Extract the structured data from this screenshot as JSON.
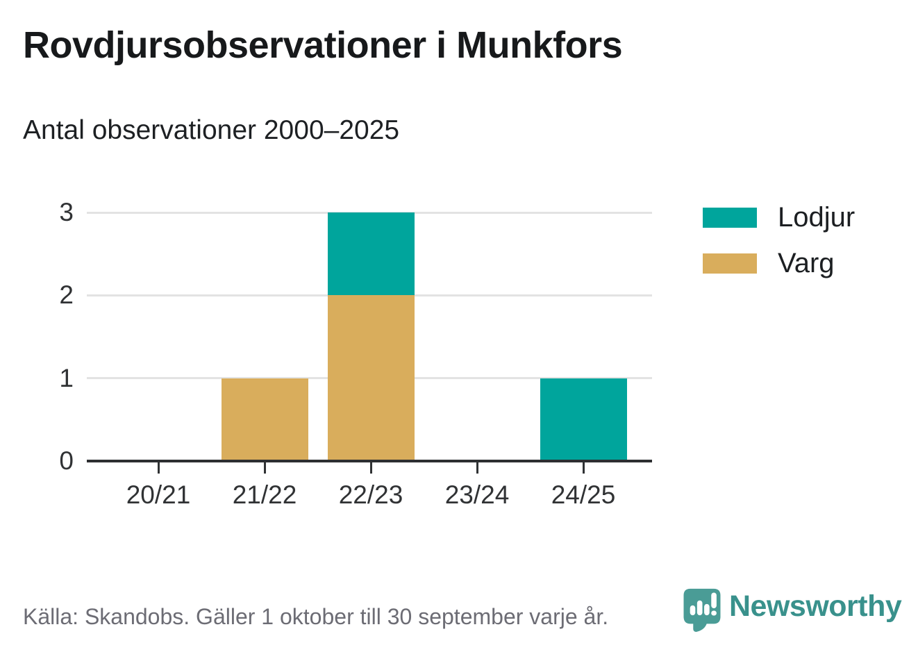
{
  "header": {
    "title": "Rovdjursobservationer i Munkfors",
    "subtitle": "Antal observationer 2000–2025"
  },
  "chart_data": {
    "type": "bar",
    "stacked": true,
    "categories": [
      "20/21",
      "21/22",
      "22/23",
      "23/24",
      "24/25"
    ],
    "series": [
      {
        "name": "Varg",
        "color": "#d9ad5c",
        "values": [
          0,
          1,
          2,
          0,
          0
        ]
      },
      {
        "name": "Lodjur",
        "color": "#00a59c",
        "values": [
          0,
          0,
          1,
          0,
          1
        ]
      }
    ],
    "title": "Rovdjursobservationer i Munkfors",
    "subtitle": "Antal observationer 2000–2025",
    "xlabel": "",
    "ylabel": "",
    "ylim": [
      0,
      3
    ],
    "yticks": [
      0,
      1,
      2,
      3
    ],
    "grid": true,
    "legend_position": "right"
  },
  "legend": {
    "items": [
      {
        "label": "Lodjur",
        "color": "#00a59c"
      },
      {
        "label": "Varg",
        "color": "#d9ad5c"
      }
    ]
  },
  "footer": {
    "source_note": "Källa: Skandobs. Gäller 1 oktober till 30 september varje år.",
    "brand": "Newsworthy"
  },
  "colors": {
    "lodjur_teal": "#00a59c",
    "varg_tan": "#d9ad5c",
    "axis": "#2d2f31",
    "gridline": "#e3e3e3",
    "tick_text": "#303234",
    "footer_text": "#6c6c74",
    "brand_teal": "#39918c",
    "logo_bubble": "#4a9c96"
  }
}
